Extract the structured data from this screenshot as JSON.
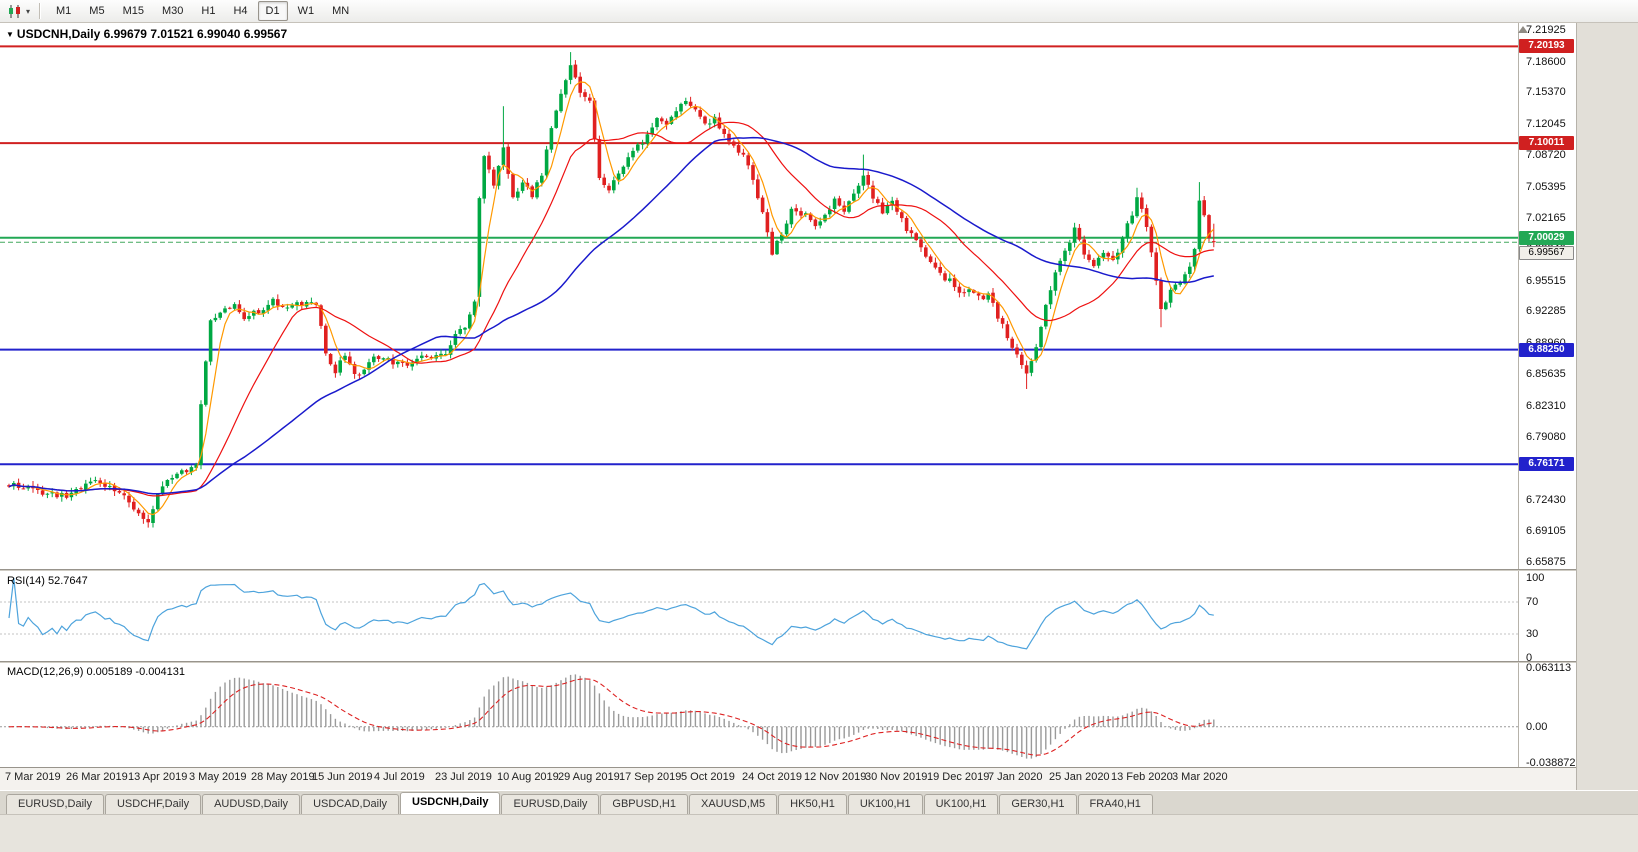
{
  "toolbar": {
    "timeframes": [
      {
        "label": "M1",
        "active": false
      },
      {
        "label": "M5",
        "active": false
      },
      {
        "label": "M15",
        "active": false
      },
      {
        "label": "M30",
        "active": false
      },
      {
        "label": "H1",
        "active": false
      },
      {
        "label": "H4",
        "active": false
      },
      {
        "label": "D1",
        "active": true
      },
      {
        "label": "W1",
        "active": false
      },
      {
        "label": "MN",
        "active": false
      }
    ]
  },
  "chart": {
    "title": "USDCNH,Daily 6.99679 7.01521 6.99040 6.99567",
    "levels": [
      {
        "price": 7.20193,
        "label": "7.20193",
        "color": "#d02020",
        "width": 2
      },
      {
        "price": 7.10011,
        "label": "7.10011",
        "color": "#d02020",
        "width": 2
      },
      {
        "price": 7.00029,
        "label": "7.00029",
        "color": "#22a855",
        "width": 2
      },
      {
        "price": 6.8825,
        "label": "6.88250",
        "color": "#2222cc",
        "width": 2
      },
      {
        "price": 6.76171,
        "label": "6.76171",
        "color": "#2222cc",
        "width": 2
      }
    ],
    "current_price": {
      "price": 6.99567,
      "label": "6.99567"
    }
  },
  "indicators": {
    "rsi": {
      "label": "RSI(14) 52.7647",
      "period": 14,
      "value": 52.7647,
      "levels": [
        70,
        30
      ],
      "axis_labels": [
        "100",
        "70",
        "30",
        "0"
      ],
      "color": "#4da3dc"
    },
    "macd": {
      "label": "MACD(12,26,9) 0.005189 -0.004131",
      "fast": 12,
      "slow": 26,
      "signal": 9,
      "value": 0.005189,
      "signal_value": -0.004131,
      "max": 0.063113,
      "min": -0.038872,
      "axis_labels": [
        "0.063113",
        "0.00",
        "-0.038872"
      ]
    }
  },
  "chart_data": {
    "type": "candlestick",
    "symbol": "USDCNH",
    "timeframe": "Daily",
    "bars": 252,
    "last_bar": {
      "open": 6.99679,
      "high": 7.01521,
      "low": 6.9904,
      "close": 6.99567
    },
    "price_range": [
      6.65875,
      7.21925
    ],
    "horizontal_levels": [
      7.20193,
      7.10011,
      7.00029,
      6.8825,
      6.76171
    ],
    "price_axis_labels": [
      "7.21925",
      "7.18600",
      "7.15370",
      "7.12045",
      "7.08720",
      "7.05395",
      "7.02165",
      "6.98840",
      "6.95515",
      "6.92285",
      "6.88960",
      "6.85635",
      "6.82310",
      "6.79080",
      "6.75755",
      "6.72430",
      "6.69105",
      "6.65875"
    ],
    "date_axis_labels": [
      "7 Mar 2019",
      "26 Mar 2019",
      "13 Apr 2019",
      "3 May 2019",
      "28 May 2019",
      "15 Jun 2019",
      "4 Jul 2019",
      "23 Jul 2019",
      "10 Aug 2019",
      "29 Aug 2019",
      "17 Sep 2019",
      "5 Oct 2019",
      "24 Oct 2019",
      "12 Nov 2019",
      "30 Nov 2019",
      "19 Dec 2019",
      "7 Jan 2020",
      "25 Jan 2020",
      "13 Feb 2020",
      "3 Mar 2020"
    ],
    "close_anchors": [
      [
        0,
        6.74
      ],
      [
        4,
        6.735
      ],
      [
        8,
        6.731
      ],
      [
        12,
        6.727
      ],
      [
        15,
        6.739
      ],
      [
        18,
        6.747
      ],
      [
        21,
        6.737
      ],
      [
        24,
        6.727
      ],
      [
        27,
        6.708
      ],
      [
        29,
        6.703
      ],
      [
        31,
        6.73
      ],
      [
        33,
        6.748
      ],
      [
        36,
        6.752
      ],
      [
        39,
        6.76
      ],
      [
        40,
        6.828
      ],
      [
        42,
        6.91
      ],
      [
        44,
        6.924
      ],
      [
        47,
        6.928
      ],
      [
        49,
        6.917
      ],
      [
        52,
        6.924
      ],
      [
        55,
        6.934
      ],
      [
        58,
        6.925
      ],
      [
        61,
        6.931
      ],
      [
        64,
        6.929
      ],
      [
        66,
        6.881
      ],
      [
        68,
        6.857
      ],
      [
        70,
        6.879
      ],
      [
        72,
        6.856
      ],
      [
        74,
        6.863
      ],
      [
        76,
        6.878
      ],
      [
        79,
        6.871
      ],
      [
        82,
        6.867
      ],
      [
        85,
        6.873
      ],
      [
        88,
        6.876
      ],
      [
        91,
        6.881
      ],
      [
        93,
        6.897
      ],
      [
        95,
        6.907
      ],
      [
        97,
        6.936
      ],
      [
        98,
        7.04
      ],
      [
        99,
        7.086
      ],
      [
        101,
        7.057
      ],
      [
        103,
        7.096
      ],
      [
        105,
        7.041
      ],
      [
        107,
        7.059
      ],
      [
        109,
        7.046
      ],
      [
        111,
        7.067
      ],
      [
        113,
        7.116
      ],
      [
        115,
        7.15
      ],
      [
        117,
        7.183
      ],
      [
        119,
        7.153
      ],
      [
        121,
        7.146
      ],
      [
        123,
        7.066
      ],
      [
        125,
        7.048
      ],
      [
        127,
        7.069
      ],
      [
        129,
        7.085
      ],
      [
        131,
        7.097
      ],
      [
        133,
        7.107
      ],
      [
        135,
        7.123
      ],
      [
        137,
        7.117
      ],
      [
        139,
        7.133
      ],
      [
        141,
        7.146
      ],
      [
        143,
        7.133
      ],
      [
        145,
        7.119
      ],
      [
        147,
        7.126
      ],
      [
        149,
        7.111
      ],
      [
        151,
        7.097
      ],
      [
        153,
        7.087
      ],
      [
        155,
        7.063
      ],
      [
        157,
        7.025
      ],
      [
        159,
        6.985
      ],
      [
        161,
        7.007
      ],
      [
        163,
        7.029
      ],
      [
        166,
        7.026
      ],
      [
        168,
        7.011
      ],
      [
        170,
        7.023
      ],
      [
        172,
        7.039
      ],
      [
        174,
        7.029
      ],
      [
        176,
        7.049
      ],
      [
        178,
        7.065
      ],
      [
        180,
        7.041
      ],
      [
        182,
        7.029
      ],
      [
        184,
        7.039
      ],
      [
        186,
        7.019
      ],
      [
        188,
        7.003
      ],
      [
        190,
        6.991
      ],
      [
        192,
        6.973
      ],
      [
        194,
        6.961
      ],
      [
        196,
        6.955
      ],
      [
        198,
        6.941
      ],
      [
        200,
        6.949
      ],
      [
        202,
        6.937
      ],
      [
        204,
        6.941
      ],
      [
        206,
        6.917
      ],
      [
        208,
        6.897
      ],
      [
        210,
        6.875
      ],
      [
        212,
        6.857
      ],
      [
        214,
        6.883
      ],
      [
        216,
        6.931
      ],
      [
        218,
        6.963
      ],
      [
        220,
        6.987
      ],
      [
        222,
        7.009
      ],
      [
        224,
        6.985
      ],
      [
        226,
        6.971
      ],
      [
        228,
        6.984
      ],
      [
        230,
        6.976
      ],
      [
        232,
        6.999
      ],
      [
        234,
        7.027
      ],
      [
        235,
        7.043
      ],
      [
        237,
        7.015
      ],
      [
        239,
        6.957
      ],
      [
        240,
        6.925
      ],
      [
        242,
        6.943
      ],
      [
        244,
        6.955
      ],
      [
        246,
        6.967
      ],
      [
        247,
        6.989
      ],
      [
        248,
        7.04
      ],
      [
        249,
        7.025
      ],
      [
        250,
        7.003
      ],
      [
        251,
        6.99567
      ]
    ],
    "bar_overrides": [
      {
        "i": 29,
        "l": 6.695
      },
      {
        "i": 98,
        "o": 6.938
      },
      {
        "i": 103,
        "h": 7.139
      },
      {
        "i": 117,
        "h": 7.196
      },
      {
        "i": 178,
        "h": 7.088
      },
      {
        "i": 212,
        "l": 6.841
      },
      {
        "i": 235,
        "h": 7.053
      },
      {
        "i": 240,
        "l": 6.906
      },
      {
        "i": 248,
        "h": 7.059
      },
      {
        "i": 251,
        "o": 6.99679,
        "h": 7.01521,
        "l": 6.9904,
        "c": 6.99567
      }
    ],
    "moving_averages": [
      {
        "period": 5,
        "color": "#ff9900"
      },
      {
        "period": 20,
        "color": "#ee1111"
      },
      {
        "period": 50,
        "color": "#1a1acc"
      }
    ],
    "style": {
      "up_color": "#00a843",
      "down_color": "#e02020",
      "rsi_color": "#4da3dc",
      "macd_hist_color": "#9a9a9a",
      "macd_signal_color": "#dd2222"
    }
  },
  "tabs": [
    {
      "label": "EURUSD,Daily",
      "active": false
    },
    {
      "label": "USDCHF,Daily",
      "active": false
    },
    {
      "label": "AUDUSD,Daily",
      "active": false
    },
    {
      "label": "USDCAD,Daily",
      "active": false
    },
    {
      "label": "USDCNH,Daily",
      "active": true
    },
    {
      "label": "EURUSD,Daily",
      "active": false
    },
    {
      "label": "GBPUSD,H1",
      "active": false
    },
    {
      "label": "XAUUSD,M5",
      "active": false
    },
    {
      "label": "HK50,H1",
      "active": false
    },
    {
      "label": "UK100,H1",
      "active": false
    },
    {
      "label": "UK100,H1",
      "active": false
    },
    {
      "label": "GER30,H1",
      "active": false
    },
    {
      "label": "FRA40,H1",
      "active": false
    }
  ]
}
